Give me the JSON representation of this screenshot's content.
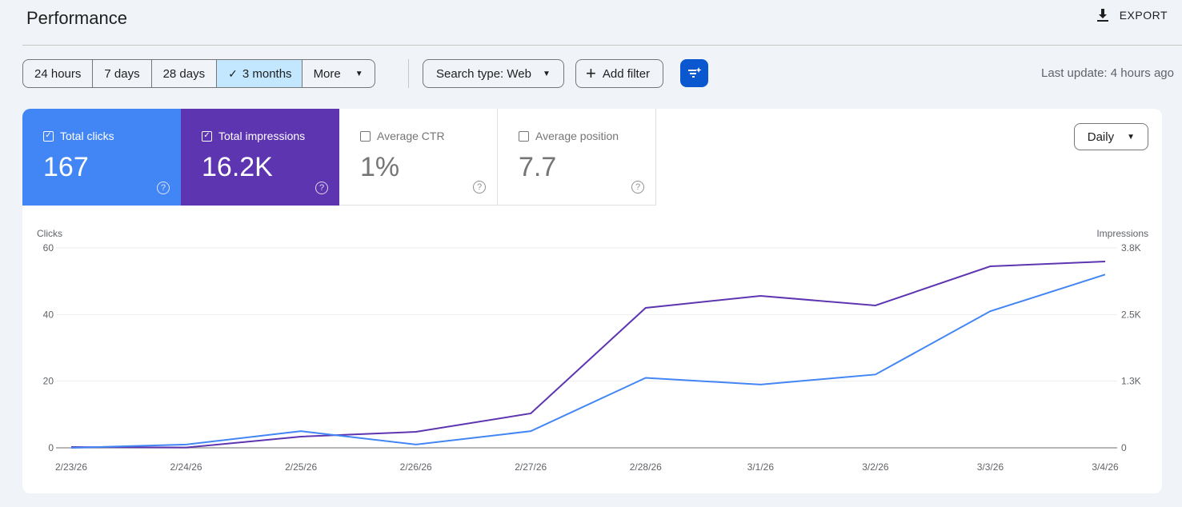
{
  "header": {
    "title": "Performance",
    "export_label": "EXPORT"
  },
  "ranges": [
    "24 hours",
    "7 days",
    "28 days",
    "3 months",
    "More"
  ],
  "selected_range": "3 months",
  "filters": {
    "search_type": "Search type: Web",
    "add_filter": "Add filter"
  },
  "last_update": "Last update: 4 hours ago",
  "metrics": [
    {
      "label": "Total clicks",
      "value": "167",
      "checked": true,
      "color": "#4285f4"
    },
    {
      "label": "Total impressions",
      "value": "16.2K",
      "checked": true,
      "color": "#5e35b1"
    },
    {
      "label": "Average CTR",
      "value": "1%",
      "checked": false
    },
    {
      "label": "Average position",
      "value": "7.7",
      "checked": false
    }
  ],
  "granularity": "Daily",
  "chart_data": {
    "type": "line",
    "x": [
      "2/23/26",
      "2/24/26",
      "2/25/26",
      "2/26/26",
      "2/27/26",
      "2/28/26",
      "3/1/26",
      "3/2/26",
      "3/3/26",
      "3/4/26"
    ],
    "series": [
      {
        "name": "Clicks",
        "axis": "left",
        "color": "#4285f4",
        "values": [
          0,
          1,
          5,
          1,
          5,
          21,
          19,
          22,
          41,
          52
        ]
      },
      {
        "name": "Impressions",
        "axis": "right",
        "color": "#5e35b1",
        "values": [
          15,
          5,
          213,
          304,
          654,
          2660,
          2888,
          2706,
          3450,
          3542
        ]
      }
    ],
    "ylabel_left": "Clicks",
    "ylabel_right": "Impressions",
    "yticks_left": [
      "0",
      "20",
      "40",
      "60"
    ],
    "yticks_right": [
      "0",
      "1.3K",
      "2.5K",
      "3.8K"
    ],
    "ylim_left": [
      0,
      60
    ],
    "ylim_right": [
      0,
      3800
    ],
    "grid": true
  }
}
